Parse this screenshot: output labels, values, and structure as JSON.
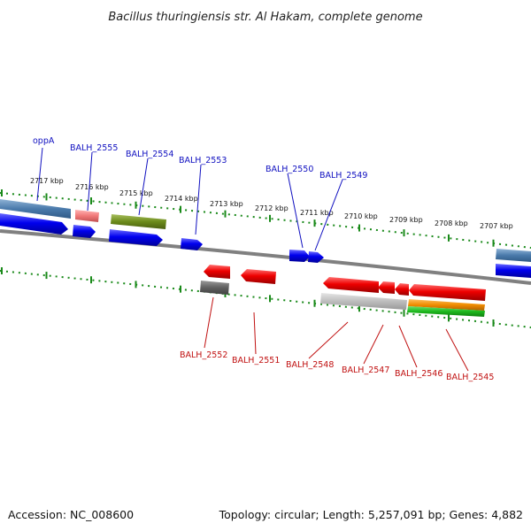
{
  "title": "Bacillus thuringiensis str. Al Hakam, complete genome",
  "footer": {
    "accession": "Accession: NC_008600",
    "summary": "Topology: circular; Length: 5,257,091 bp; Genes: 4,882"
  },
  "ticks": [
    "2717 kbp",
    "2716 kbp",
    "2715 kbp",
    "2714 kbp",
    "2713 kbp",
    "2712 kbp",
    "2711 kbp",
    "2710 kbp",
    "2709 kbp",
    "2708 kbp",
    "2707 kbp"
  ],
  "forward_labels": [
    "oppA",
    "BALH_2555",
    "BALH_2554",
    "BALH_2553",
    "BALH_2550",
    "BALH_2549"
  ],
  "reverse_labels": [
    "BALH_2552",
    "BALH_2551",
    "BALH_2548",
    "BALH_2547",
    "BALH_2546",
    "BALH_2545"
  ],
  "colors": {
    "forward_label": "#1010c0",
    "reverse_label": "#c01010",
    "cds_forward": "#0000ee",
    "cds_reverse": "#ee0000",
    "backbone": "#808080",
    "ticks": "#1a8a1a"
  }
}
